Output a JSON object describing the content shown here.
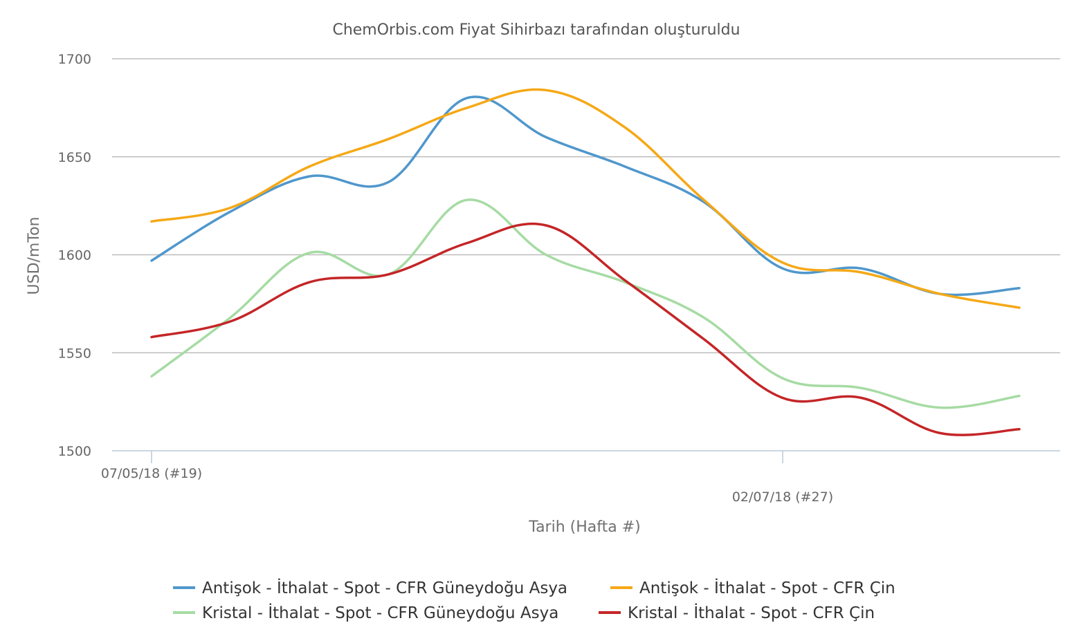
{
  "chart_data": {
    "type": "line",
    "title": "ChemOrbis.com Fiyat Sihirbazı tarafından oluşturuldu",
    "xlabel": "Tarih (Hafta #)",
    "ylabel": "USD/mTon",
    "ylim": [
      1500,
      1700
    ],
    "yticks": [
      1500,
      1550,
      1600,
      1650,
      1700
    ],
    "x_tick_labels": [
      {
        "week_index": 0,
        "label": "07/05/18 (#19)"
      },
      {
        "week_index": 8,
        "label": "02/07/18 (#27)"
      }
    ],
    "grid": true,
    "legend_position": "bottom",
    "series": [
      {
        "name": "Antişok - İthalat - Spot - CFR Güneydoğu Asya",
        "color": "#4f97cc",
        "values": [
          1597,
          1622,
          1640,
          1637,
          1680,
          1660,
          1645,
          1627,
          1593,
          1593,
          1580,
          1583
        ]
      },
      {
        "name": "Antişok - İthalat - Spot - CFR Çin",
        "color": "#f5a816",
        "values": [
          1617,
          1624,
          1645,
          1659,
          1675,
          1684,
          1665,
          1628,
          1596,
          1591,
          1580,
          1573
        ]
      },
      {
        "name": "Kristal - İthalat - Spot - CFR Güneydoğu Asya",
        "color": "#a6dba3",
        "values": [
          1538,
          1568,
          1601,
          1590,
          1628,
          1600,
          1586,
          1568,
          1537,
          1532,
          1522,
          1528
        ]
      },
      {
        "name": "Kristal - İthalat - Spot - CFR Çin",
        "color": "#c42527",
        "values": [
          1558,
          1566,
          1586,
          1590,
          1606,
          1615,
          1587,
          1557,
          1527,
          1527,
          1509,
          1511
        ]
      }
    ]
  }
}
